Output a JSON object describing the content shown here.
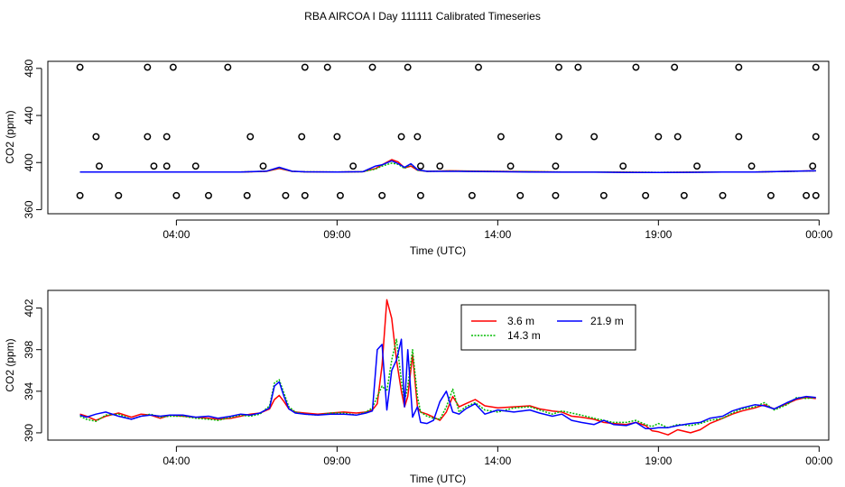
{
  "title": "RBA AIRCOA I  Day 111111  Calibrated Timeseries",
  "chart_data": [
    {
      "type": "line",
      "title": "",
      "xlabel": "Time (UTC)",
      "ylabel": "CO2 (ppm)",
      "x_unit": "hours",
      "xlim": [
        0.0,
        24.3
      ],
      "ylim": [
        356.5,
        486
      ],
      "x_ticks": [
        4,
        9,
        14,
        19,
        24
      ],
      "x_tick_labels": [
        "04:00",
        "09:00",
        "14:00",
        "19:00",
        "00:00"
      ],
      "y_ticks": [
        360,
        400,
        440,
        480
      ],
      "y_tick_labels": [
        "360",
        "400",
        "440",
        "480"
      ],
      "grid": false,
      "legend": "none",
      "series": [
        {
          "name": "3.6 m",
          "color": "#ff0000",
          "x": [
            1.0,
            2.0,
            3.0,
            4.0,
            5.0,
            6.0,
            6.8,
            7.2,
            7.6,
            8.0,
            9.0,
            9.8,
            10.2,
            10.4,
            10.7,
            10.9,
            11.1,
            11.3,
            11.5,
            11.8,
            12.5,
            13.0,
            14.0,
            15.0,
            16.0,
            17.0,
            18.0,
            19.0,
            20.0,
            21.0,
            22.0,
            23.0,
            23.9
          ],
          "y": [
            392.0,
            392.0,
            391.9,
            392.0,
            391.9,
            392.0,
            392.5,
            395.0,
            392.5,
            392.1,
            392.0,
            392.2,
            395.0,
            398.0,
            402.5,
            400.5,
            395.5,
            397.0,
            393.5,
            392.5,
            393.0,
            392.8,
            392.5,
            392.3,
            392.0,
            392.0,
            391.8,
            391.6,
            391.8,
            392.0,
            392.0,
            392.5,
            393.0
          ]
        },
        {
          "name": "14.3 m",
          "color": "#00bb00",
          "x": [
            1.0,
            2.0,
            3.0,
            4.0,
            5.0,
            6.0,
            6.8,
            7.2,
            7.6,
            8.0,
            9.0,
            9.8,
            10.2,
            10.4,
            10.7,
            10.9,
            11.1,
            11.3,
            11.5,
            11.8,
            12.5,
            13.0,
            14.0,
            15.0,
            16.0,
            17.0,
            18.0,
            19.0,
            20.0,
            21.0,
            22.0,
            23.0,
            23.9
          ],
          "y": [
            392.0,
            392.0,
            391.9,
            392.0,
            391.9,
            392.0,
            392.6,
            395.5,
            392.5,
            392.1,
            392.0,
            392.2,
            394.5,
            397.0,
            399.5,
            398.5,
            395.0,
            398.5,
            393.5,
            392.5,
            392.8,
            392.7,
            392.4,
            392.2,
            392.0,
            392.0,
            391.8,
            391.7,
            391.8,
            392.0,
            392.0,
            392.4,
            393.0
          ]
        },
        {
          "name": "21.9 m",
          "color": "#0000ff",
          "x": [
            1.0,
            2.0,
            3.0,
            4.0,
            5.0,
            6.0,
            6.8,
            7.2,
            7.6,
            8.0,
            9.0,
            9.8,
            10.2,
            10.4,
            10.7,
            10.9,
            11.1,
            11.3,
            11.5,
            11.8,
            12.5,
            13.0,
            14.0,
            15.0,
            16.0,
            17.0,
            18.0,
            19.0,
            20.0,
            21.0,
            22.0,
            23.0,
            23.9
          ],
          "y": [
            392.0,
            392.0,
            391.9,
            392.0,
            391.9,
            392.0,
            392.7,
            396.0,
            392.6,
            392.1,
            392.0,
            392.2,
            397.0,
            398.0,
            401.5,
            399.0,
            396.0,
            399.0,
            394.0,
            392.5,
            392.5,
            392.4,
            392.2,
            392.0,
            391.8,
            391.8,
            391.6,
            391.5,
            391.7,
            392.0,
            392.0,
            392.5,
            393.0
          ]
        }
      ],
      "markers": {
        "name": "calibration points",
        "symbol": "open circle",
        "x": [
          1.0,
          2.2,
          4.0,
          5.0,
          6.2,
          7.4,
          8.0,
          9.1,
          10.4,
          11.6,
          13.2,
          14.7,
          15.8,
          17.3,
          18.6,
          19.8,
          21.0,
          22.5,
          23.6,
          23.9,
          1.6,
          3.3,
          3.7,
          4.6,
          6.7,
          9.5,
          11.6,
          12.2,
          14.4,
          15.8,
          17.9,
          20.2,
          21.9,
          23.8,
          1.5,
          3.1,
          3.7,
          6.3,
          7.9,
          9.0,
          11.0,
          11.5,
          14.1,
          15.9,
          17.0,
          19.0,
          19.6,
          21.5,
          23.9,
          1.0,
          3.1,
          3.9,
          5.6,
          8.0,
          8.7,
          10.1,
          11.2,
          13.4,
          15.9,
          16.5,
          18.3,
          19.5,
          21.5,
          23.9
        ],
        "y": [
          372,
          372,
          372,
          372,
          372,
          372,
          372,
          372,
          372,
          372,
          372,
          372,
          372,
          372,
          372,
          372,
          372,
          372,
          372,
          372,
          397,
          397,
          397,
          397,
          397,
          397,
          397,
          397,
          397,
          397,
          397,
          397,
          397,
          397,
          422,
          422,
          422,
          422,
          422,
          422,
          422,
          422,
          422,
          422,
          422,
          422,
          422,
          422,
          422,
          481,
          481,
          481,
          481,
          481,
          481,
          481,
          481,
          481,
          481,
          481,
          481,
          481,
          481,
          481
        ]
      }
    },
    {
      "type": "line",
      "title": "",
      "xlabel": "Time (UTC)",
      "ylabel": "CO2 (ppm)",
      "x_unit": "hours",
      "xlim": [
        0.0,
        24.3
      ],
      "ylim": [
        389.3,
        403.7
      ],
      "x_ticks": [
        4,
        9,
        14,
        19,
        24
      ],
      "x_tick_labels": [
        "04:00",
        "09:00",
        "14:00",
        "19:00",
        "00:00"
      ],
      "y_ticks": [
        390,
        394,
        398,
        402
      ],
      "y_tick_labels": [
        "390",
        "394",
        "398",
        "402"
      ],
      "grid": false,
      "legend": "top-center",
      "legend_entries": [
        "3.6 m",
        "21.9 m",
        "14.3 m"
      ],
      "series": [
        {
          "name": "3.6 m",
          "color": "#ff0000",
          "x": [
            1.0,
            1.2,
            1.5,
            1.8,
            2.2,
            2.6,
            2.9,
            3.2,
            3.5,
            3.8,
            4.2,
            4.6,
            5.0,
            5.3,
            5.7,
            6.0,
            6.3,
            6.6,
            6.9,
            7.05,
            7.2,
            7.35,
            7.5,
            7.7,
            8.0,
            8.4,
            8.8,
            9.2,
            9.6,
            9.9,
            10.1,
            10.25,
            10.4,
            10.55,
            10.7,
            10.85,
            11.0,
            11.1,
            11.2,
            11.35,
            11.5,
            11.6,
            11.8,
            12.0,
            12.2,
            12.4,
            12.6,
            12.8,
            13.0,
            13.3,
            13.6,
            14.0,
            14.5,
            15.0,
            15.3,
            15.7,
            16.0,
            16.3,
            16.6,
            17.0,
            17.3,
            17.6,
            18.0,
            18.3,
            18.6,
            18.8,
            19.0,
            19.3,
            19.6,
            20.0,
            20.3,
            20.6,
            21.0,
            21.3,
            21.6,
            22.0,
            22.3,
            22.6,
            23.0,
            23.3,
            23.6,
            23.9
          ],
          "y": [
            391.8,
            391.6,
            391.2,
            391.6,
            391.9,
            391.5,
            391.8,
            391.7,
            391.4,
            391.7,
            391.6,
            391.5,
            391.4,
            391.3,
            391.4,
            391.6,
            391.8,
            391.9,
            392.3,
            393.2,
            393.6,
            393.0,
            392.3,
            392.0,
            391.9,
            391.8,
            391.9,
            392.0,
            391.9,
            392.0,
            392.2,
            392.8,
            396.5,
            402.8,
            401.0,
            397.0,
            394.0,
            392.5,
            393.5,
            397.5,
            392.5,
            392.0,
            391.8,
            391.5,
            391.2,
            392.0,
            393.5,
            392.5,
            392.8,
            393.2,
            392.6,
            392.4,
            392.5,
            392.6,
            392.3,
            392.1,
            392.0,
            391.6,
            391.5,
            391.3,
            391.0,
            390.9,
            390.8,
            391.0,
            390.7,
            390.2,
            390.1,
            389.8,
            390.3,
            390.0,
            390.3,
            390.9,
            391.4,
            391.8,
            392.1,
            392.4,
            392.7,
            392.3,
            392.8,
            393.2,
            393.4,
            393.3
          ]
        },
        {
          "name": "14.3 m",
          "color": "#00bb00",
          "x": [
            1.0,
            1.2,
            1.5,
            1.8,
            2.2,
            2.6,
            2.9,
            3.2,
            3.5,
            3.8,
            4.2,
            4.6,
            5.0,
            5.3,
            5.7,
            6.0,
            6.3,
            6.6,
            6.9,
            7.05,
            7.2,
            7.35,
            7.5,
            7.7,
            8.0,
            8.4,
            8.8,
            9.2,
            9.6,
            9.9,
            10.1,
            10.25,
            10.4,
            10.55,
            10.7,
            10.85,
            11.0,
            11.1,
            11.2,
            11.35,
            11.5,
            11.6,
            11.8,
            12.0,
            12.2,
            12.4,
            12.6,
            12.8,
            13.0,
            13.3,
            13.6,
            14.0,
            14.5,
            15.0,
            15.3,
            15.7,
            16.0,
            16.3,
            16.6,
            17.0,
            17.3,
            17.6,
            18.0,
            18.3,
            18.6,
            18.8,
            19.0,
            19.3,
            19.6,
            20.0,
            20.3,
            20.6,
            21.0,
            21.3,
            21.6,
            22.0,
            22.3,
            22.6,
            23.0,
            23.3,
            23.6,
            23.9
          ],
          "y": [
            391.6,
            391.3,
            391.1,
            391.7,
            391.8,
            391.3,
            391.6,
            391.8,
            391.5,
            391.6,
            391.6,
            391.4,
            391.3,
            391.2,
            391.5,
            391.7,
            391.6,
            391.8,
            392.6,
            394.8,
            395.1,
            393.8,
            392.5,
            392.0,
            391.8,
            391.7,
            391.9,
            391.9,
            391.7,
            392.0,
            392.4,
            393.5,
            394.5,
            394.0,
            397.0,
            399.0,
            395.0,
            393.0,
            394.5,
            398.0,
            393.5,
            392.0,
            391.6,
            391.4,
            391.3,
            392.5,
            394.2,
            392.0,
            392.5,
            392.9,
            392.2,
            392.0,
            392.4,
            392.5,
            392.2,
            391.8,
            392.1,
            391.9,
            391.7,
            391.4,
            391.2,
            391.0,
            391.0,
            391.2,
            390.8,
            390.6,
            390.9,
            390.5,
            390.8,
            390.7,
            390.9,
            391.2,
            391.4,
            391.9,
            392.3,
            392.5,
            392.9,
            392.2,
            392.7,
            393.4,
            393.3,
            393.4
          ]
        },
        {
          "name": "21.9 m",
          "color": "#0000ff",
          "x": [
            1.0,
            1.2,
            1.5,
            1.8,
            2.2,
            2.6,
            2.9,
            3.2,
            3.5,
            3.8,
            4.2,
            4.6,
            5.0,
            5.3,
            5.7,
            6.0,
            6.3,
            6.6,
            6.9,
            7.05,
            7.2,
            7.35,
            7.5,
            7.7,
            8.0,
            8.4,
            8.8,
            9.2,
            9.6,
            9.9,
            10.1,
            10.25,
            10.4,
            10.55,
            10.7,
            10.85,
            11.0,
            11.1,
            11.2,
            11.35,
            11.5,
            11.6,
            11.8,
            12.0,
            12.2,
            12.4,
            12.6,
            12.8,
            13.0,
            13.3,
            13.6,
            14.0,
            14.5,
            15.0,
            15.3,
            15.7,
            16.0,
            16.3,
            16.6,
            17.0,
            17.3,
            17.6,
            18.0,
            18.3,
            18.6,
            18.8,
            19.0,
            19.3,
            19.6,
            20.0,
            20.3,
            20.6,
            21.0,
            21.3,
            21.6,
            22.0,
            22.3,
            22.6,
            23.0,
            23.3,
            23.6,
            23.9
          ],
          "y": [
            391.7,
            391.5,
            391.8,
            392.0,
            391.6,
            391.3,
            391.6,
            391.7,
            391.6,
            391.7,
            391.7,
            391.5,
            391.6,
            391.4,
            391.6,
            391.8,
            391.7,
            391.9,
            392.4,
            394.5,
            394.9,
            393.5,
            392.3,
            391.9,
            391.8,
            391.7,
            391.8,
            391.8,
            391.7,
            391.9,
            392.1,
            398.0,
            398.5,
            392.2,
            396.0,
            397.0,
            399.0,
            392.5,
            398.0,
            391.5,
            392.5,
            391.0,
            390.9,
            391.2,
            393.0,
            394.0,
            392.0,
            391.8,
            392.3,
            392.8,
            391.8,
            392.2,
            392.0,
            392.2,
            391.9,
            391.6,
            391.8,
            391.2,
            391.0,
            390.8,
            391.2,
            390.8,
            390.7,
            391.0,
            390.4,
            390.4,
            390.5,
            390.5,
            390.7,
            390.9,
            391.0,
            391.4,
            391.6,
            392.1,
            392.4,
            392.7,
            392.6,
            392.3,
            392.9,
            393.3,
            393.5,
            393.4
          ]
        }
      ]
    }
  ]
}
